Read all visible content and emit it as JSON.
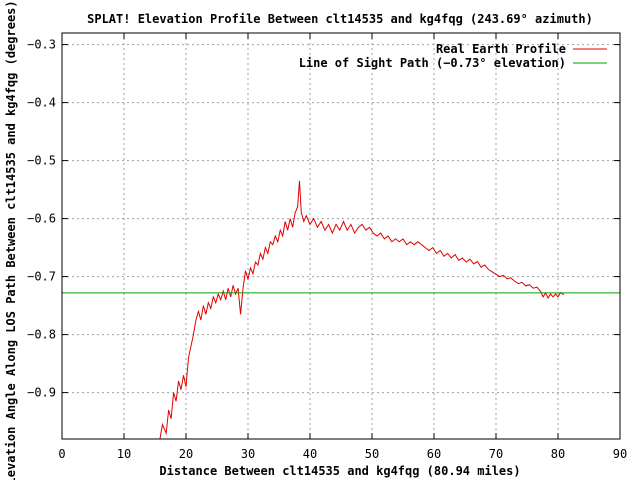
{
  "chart_data": {
    "type": "line",
    "title": "SPLAT! Elevation Profile Between clt14535 and kg4fqg (243.69° azimuth)",
    "xlabel": "Distance Between clt14535 and kg4fqg (80.94 miles)",
    "ylabel": "Elevation Angle Along LOS Path Between clt14535 and kg4fqg (degrees)",
    "xlim": [
      0,
      90
    ],
    "ylim": [
      -0.98,
      -0.28
    ],
    "x_ticks": [
      0,
      10,
      20,
      30,
      40,
      50,
      60,
      70,
      80,
      90
    ],
    "x_tick_labels": [
      "0",
      "10",
      "20",
      "30",
      "40",
      "50",
      "60",
      "70",
      "80",
      "90"
    ],
    "y_ticks": [
      -0.3,
      -0.4,
      -0.5,
      -0.6,
      -0.7,
      -0.8,
      -0.9
    ],
    "y_tick_labels": [
      "−0.3",
      "−0.4",
      "−0.5",
      "−0.6",
      "−0.7",
      "−0.8",
      "−0.9"
    ],
    "grid": true,
    "legend_position": "top-right",
    "series": [
      {
        "name": "Real Earth Profile",
        "color": "#e00000",
        "points": [
          [
            15.8,
            -0.98
          ],
          [
            16.2,
            -0.955
          ],
          [
            16.8,
            -0.97
          ],
          [
            17.2,
            -0.93
          ],
          [
            17.6,
            -0.945
          ],
          [
            18.0,
            -0.9
          ],
          [
            18.4,
            -0.915
          ],
          [
            18.8,
            -0.88
          ],
          [
            19.2,
            -0.895
          ],
          [
            19.6,
            -0.87
          ],
          [
            20.0,
            -0.89
          ],
          [
            20.4,
            -0.84
          ],
          [
            20.8,
            -0.82
          ],
          [
            21.2,
            -0.8
          ],
          [
            21.6,
            -0.775
          ],
          [
            22.0,
            -0.76
          ],
          [
            22.4,
            -0.775
          ],
          [
            22.8,
            -0.75
          ],
          [
            23.2,
            -0.765
          ],
          [
            23.6,
            -0.745
          ],
          [
            24.0,
            -0.755
          ],
          [
            24.4,
            -0.735
          ],
          [
            24.8,
            -0.745
          ],
          [
            25.2,
            -0.73
          ],
          [
            25.6,
            -0.74
          ],
          [
            26.0,
            -0.725
          ],
          [
            26.4,
            -0.74
          ],
          [
            26.8,
            -0.72
          ],
          [
            27.2,
            -0.735
          ],
          [
            27.6,
            -0.715
          ],
          [
            28.0,
            -0.73
          ],
          [
            28.4,
            -0.72
          ],
          [
            28.8,
            -0.765
          ],
          [
            29.2,
            -0.72
          ],
          [
            29.6,
            -0.69
          ],
          [
            30.0,
            -0.705
          ],
          [
            30.4,
            -0.685
          ],
          [
            30.8,
            -0.695
          ],
          [
            31.2,
            -0.675
          ],
          [
            31.6,
            -0.68
          ],
          [
            32.0,
            -0.66
          ],
          [
            32.4,
            -0.67
          ],
          [
            32.8,
            -0.65
          ],
          [
            33.2,
            -0.66
          ],
          [
            33.6,
            -0.64
          ],
          [
            34.0,
            -0.645
          ],
          [
            34.4,
            -0.63
          ],
          [
            34.8,
            -0.64
          ],
          [
            35.2,
            -0.62
          ],
          [
            35.6,
            -0.63
          ],
          [
            36.0,
            -0.605
          ],
          [
            36.4,
            -0.62
          ],
          [
            36.8,
            -0.6
          ],
          [
            37.2,
            -0.615
          ],
          [
            37.6,
            -0.59
          ],
          [
            38.0,
            -0.58
          ],
          [
            38.3,
            -0.535
          ],
          [
            38.6,
            -0.59
          ],
          [
            39.0,
            -0.605
          ],
          [
            39.4,
            -0.595
          ],
          [
            40.0,
            -0.61
          ],
          [
            40.6,
            -0.6
          ],
          [
            41.2,
            -0.615
          ],
          [
            41.8,
            -0.605
          ],
          [
            42.4,
            -0.62
          ],
          [
            43.0,
            -0.61
          ],
          [
            43.6,
            -0.625
          ],
          [
            44.2,
            -0.61
          ],
          [
            44.8,
            -0.62
          ],
          [
            45.4,
            -0.605
          ],
          [
            46.0,
            -0.62
          ],
          [
            46.6,
            -0.61
          ],
          [
            47.2,
            -0.625
          ],
          [
            47.8,
            -0.615
          ],
          [
            48.4,
            -0.61
          ],
          [
            49.0,
            -0.62
          ],
          [
            49.6,
            -0.615
          ],
          [
            50.2,
            -0.625
          ],
          [
            50.8,
            -0.63
          ],
          [
            51.4,
            -0.625
          ],
          [
            52.0,
            -0.635
          ],
          [
            52.6,
            -0.63
          ],
          [
            53.2,
            -0.64
          ],
          [
            53.8,
            -0.635
          ],
          [
            54.4,
            -0.64
          ],
          [
            55.0,
            -0.635
          ],
          [
            55.6,
            -0.645
          ],
          [
            56.2,
            -0.64
          ],
          [
            56.8,
            -0.645
          ],
          [
            57.4,
            -0.64
          ],
          [
            58.0,
            -0.645
          ],
          [
            58.6,
            -0.65
          ],
          [
            59.2,
            -0.655
          ],
          [
            59.8,
            -0.65
          ],
          [
            60.4,
            -0.66
          ],
          [
            61.0,
            -0.655
          ],
          [
            61.6,
            -0.665
          ],
          [
            62.2,
            -0.66
          ],
          [
            62.8,
            -0.668
          ],
          [
            63.4,
            -0.662
          ],
          [
            64.0,
            -0.672
          ],
          [
            64.6,
            -0.668
          ],
          [
            65.2,
            -0.675
          ],
          [
            65.8,
            -0.67
          ],
          [
            66.4,
            -0.678
          ],
          [
            67.0,
            -0.674
          ],
          [
            67.6,
            -0.684
          ],
          [
            68.2,
            -0.68
          ],
          [
            68.8,
            -0.688
          ],
          [
            69.4,
            -0.692
          ],
          [
            70.0,
            -0.696
          ],
          [
            70.6,
            -0.7
          ],
          [
            71.2,
            -0.698
          ],
          [
            71.8,
            -0.704
          ],
          [
            72.4,
            -0.702
          ],
          [
            73.0,
            -0.708
          ],
          [
            73.6,
            -0.712
          ],
          [
            74.2,
            -0.71
          ],
          [
            74.8,
            -0.716
          ],
          [
            75.4,
            -0.714
          ],
          [
            76.0,
            -0.72
          ],
          [
            76.6,
            -0.718
          ],
          [
            77.2,
            -0.726
          ],
          [
            77.6,
            -0.735
          ],
          [
            78.0,
            -0.728
          ],
          [
            78.4,
            -0.737
          ],
          [
            78.8,
            -0.73
          ],
          [
            79.2,
            -0.735
          ],
          [
            79.6,
            -0.73
          ],
          [
            80.0,
            -0.735
          ],
          [
            80.4,
            -0.728
          ],
          [
            80.94,
            -0.731
          ]
        ]
      },
      {
        "name": "Line of Sight Path (−0.73° elevation)",
        "color": "#00a000",
        "points": [
          [
            0,
            -0.728
          ],
          [
            90,
            -0.728
          ]
        ]
      }
    ]
  }
}
